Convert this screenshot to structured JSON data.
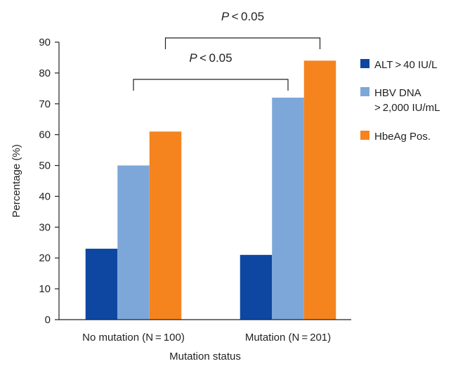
{
  "chart_data": {
    "type": "bar",
    "title": "",
    "xlabel": "Mutation status",
    "ylabel": "Percentage (%)",
    "ylim": [
      0,
      90
    ],
    "yticks": [
      0,
      10,
      20,
      30,
      40,
      50,
      60,
      70,
      80,
      90
    ],
    "grid": false,
    "legend_position": "right",
    "categories": [
      "No mutation (N = 100)",
      "Mutation (N = 201)"
    ],
    "series": [
      {
        "name": "ALT > 40 IU/L",
        "name_lines": [
          "ALT > 40 IU/L"
        ],
        "color": "#0d47a1",
        "values": [
          23,
          21
        ]
      },
      {
        "name": "HBV DNA >2,000 IU/mL",
        "name_lines": [
          "HBV DNA",
          "> 2,000 IU/mL"
        ],
        "color": "#7da7d9",
        "values": [
          50,
          72
        ]
      },
      {
        "name": "HbeAg Pos.",
        "name_lines": [
          "HbeAg Pos."
        ],
        "color": "#f5841f",
        "values": [
          61,
          84
        ]
      }
    ],
    "annotations": [
      {
        "label_italic": "P",
        "label_rest": " < 0.05",
        "from": "No mutation — HBV DNA",
        "to": "Mutation — HBV DNA"
      },
      {
        "label_italic": "P",
        "label_rest": " < 0.05",
        "from": "No mutation — HbeAg Pos.",
        "to": "Mutation — HbeAg Pos."
      }
    ]
  }
}
